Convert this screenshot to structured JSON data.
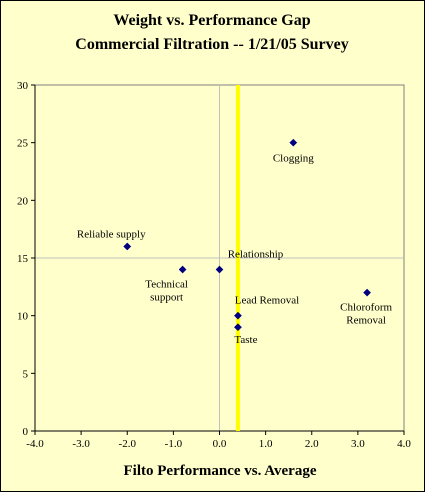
{
  "chart_data": {
    "type": "scatter",
    "title": [
      "Weight vs. Performance Gap",
      "Commercial Filtration --  1/21/05 Survey"
    ],
    "xlabel": "Filto Performance vs. Average",
    "ylabel": "",
    "xlim": [
      -4.0,
      4.0
    ],
    "ylim": [
      0,
      30
    ],
    "xticks": [
      "-4.0",
      "-3.0",
      "-2.0",
      "-1.0",
      "0.0",
      "1.0",
      "2.0",
      "3.0",
      "4.0"
    ],
    "yticks": [
      "0",
      "5",
      "10",
      "15",
      "20",
      "25",
      "30"
    ],
    "grid": true,
    "reference_line": {
      "x": 0.4,
      "color": "#ffff00"
    },
    "points": [
      {
        "x": 1.6,
        "y": 25,
        "label": [
          "Clogging"
        ]
      },
      {
        "x": -2.0,
        "y": 16,
        "label": [
          "Reliable supply"
        ]
      },
      {
        "x": -0.8,
        "y": 14,
        "label": [
          "Technical",
          "support"
        ]
      },
      {
        "x": 0.0,
        "y": 14,
        "label": [
          "Relationship"
        ]
      },
      {
        "x": 0.4,
        "y": 10,
        "label": [
          "Lead Removal"
        ]
      },
      {
        "x": 0.4,
        "y": 9,
        "label": [
          "Taste"
        ]
      },
      {
        "x": 3.2,
        "y": 12,
        "label": [
          "Chloroform",
          "Removal"
        ]
      }
    ],
    "colors": {
      "background": "#ffffcc",
      "marker": "#000080",
      "grid": "#c0c0c0"
    }
  }
}
